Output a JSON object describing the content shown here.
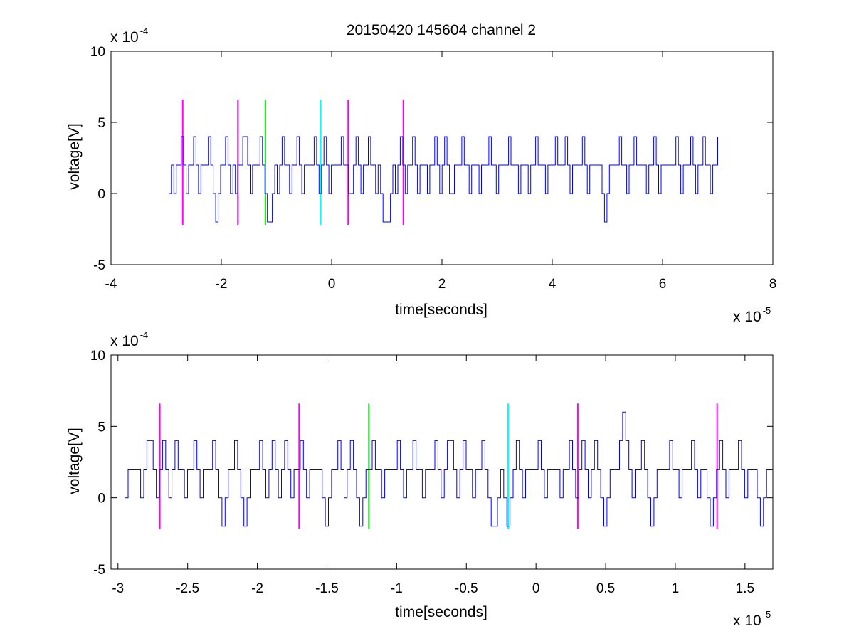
{
  "figure_title": "20150420 145604 channel 2",
  "chart_data": [
    {
      "type": "line",
      "title": "20150420 145604 channel 2",
      "xlabel": "time[seconds]",
      "ylabel": "voltage[V]",
      "x_multiplier_text": "x 10",
      "x_multiplier_exp": "-5",
      "y_multiplier_text": "x 10",
      "y_multiplier_exp": "-4",
      "xlim": [
        -4,
        8
      ],
      "ylim": [
        -5,
        10
      ],
      "xticks": [
        -4,
        -2,
        0,
        2,
        4,
        6,
        8
      ],
      "xtick_labels": [
        "-4",
        "-2",
        "0",
        "2",
        "4",
        "6",
        "8"
      ],
      "yticks": [
        -5,
        0,
        5,
        10
      ],
      "ytick_labels": [
        "-5",
        "0",
        "5",
        "10"
      ],
      "grid": false,
      "series": [
        {
          "color": "#0000ff",
          "x_start": -2.95,
          "x_end": 7.0,
          "levels": [
            0,
            2,
            0,
            2,
            2,
            4,
            2,
            0,
            2,
            2,
            4,
            2,
            0,
            2,
            2,
            2,
            4,
            2,
            0,
            -2,
            0,
            2,
            2,
            4,
            2,
            0,
            2,
            0,
            2,
            2,
            4,
            4,
            2,
            0,
            2,
            2,
            2,
            4,
            2,
            0,
            -2,
            -2,
            0,
            2,
            0,
            2,
            4,
            2,
            2,
            0,
            2,
            2,
            4,
            2,
            0,
            2,
            2,
            2,
            2,
            4,
            2,
            0,
            2,
            4,
            2,
            0,
            2,
            2,
            2,
            2,
            4,
            2,
            2,
            0,
            0,
            2,
            4,
            2,
            0,
            2,
            2,
            4,
            2,
            2,
            0,
            2,
            0,
            -2,
            -2,
            -2,
            0,
            2,
            0,
            2,
            4,
            2,
            0,
            2,
            2,
            4,
            2,
            0,
            2,
            2,
            2,
            0,
            2,
            2,
            4,
            2,
            0,
            2,
            4,
            2,
            0,
            0,
            2,
            2,
            2,
            4,
            2,
            2,
            0,
            2,
            2,
            2,
            0,
            2,
            2,
            2,
            4,
            2,
            2,
            0,
            2,
            2,
            2,
            2,
            4,
            2,
            2,
            2,
            0,
            2,
            2,
            2,
            0,
            2,
            2,
            4,
            2,
            2,
            2,
            0,
            2,
            2,
            2,
            4,
            2,
            2,
            2,
            4,
            2,
            0,
            2,
            2,
            2,
            2,
            4,
            2,
            0,
            2,
            2,
            2,
            2,
            2,
            0,
            -2,
            0,
            2,
            2,
            2,
            2,
            4,
            2,
            2,
            0,
            2,
            2,
            4,
            2,
            2,
            2,
            2,
            0,
            2,
            2,
            4,
            2,
            0,
            2,
            2,
            2,
            2,
            2,
            2,
            4,
            2,
            0,
            2,
            2,
            2,
            4,
            2,
            0,
            2,
            2,
            4,
            2,
            2,
            0,
            2,
            2,
            4
          ]
        }
      ],
      "markers": [
        {
          "x": -2.7,
          "color": "#ff00ff"
        },
        {
          "x": -1.7,
          "color": "#ff00ff"
        },
        {
          "x": -1.2,
          "color": "#00ff00"
        },
        {
          "x": -0.2,
          "color": "#00ffff"
        },
        {
          "x": 0.3,
          "color": "#ff00ff"
        },
        {
          "x": 1.3,
          "color": "#ff00ff"
        }
      ],
      "marker_range": [
        -2.2,
        6.6
      ]
    },
    {
      "type": "line",
      "xlabel": "time[seconds]",
      "ylabel": "voltage[V]",
      "x_multiplier_text": "x 10",
      "x_multiplier_exp": "-5",
      "y_multiplier_text": "x 10",
      "y_multiplier_exp": "-4",
      "xlim": [
        -3.05,
        1.7
      ],
      "ylim": [
        -5,
        10
      ],
      "xticks": [
        -3,
        -2.5,
        -2,
        -1.5,
        -1,
        -0.5,
        0,
        0.5,
        1,
        1.5
      ],
      "xtick_labels": [
        "-3",
        "-2.5",
        "-2",
        "-1.5",
        "-1",
        "-0.5",
        "0",
        "0.5",
        "1",
        "1.5"
      ],
      "yticks": [
        -5,
        0,
        5,
        10
      ],
      "ytick_labels": [
        "-5",
        "0",
        "5",
        "10"
      ],
      "grid": false,
      "series": [
        {
          "color": "#0000ff",
          "x_start": -2.95,
          "x_end": 1.7,
          "levels": [
            0,
            2,
            2,
            2,
            2,
            0,
            2,
            4,
            4,
            2,
            0,
            2,
            4,
            2,
            0,
            2,
            4,
            2,
            2,
            0,
            2,
            2,
            4,
            2,
            0,
            2,
            2,
            2,
            4,
            2,
            0,
            -2,
            0,
            2,
            2,
            4,
            2,
            0,
            -2,
            0,
            2,
            2,
            2,
            4,
            2,
            0,
            2,
            4,
            2,
            0,
            2,
            4,
            2,
            0,
            2,
            2,
            4,
            2,
            0,
            2,
            2,
            2,
            2,
            0,
            -2,
            0,
            2,
            2,
            4,
            2,
            0,
            2,
            4,
            2,
            0,
            -2,
            0,
            2,
            2,
            4,
            2,
            2,
            0,
            2,
            2,
            2,
            2,
            4,
            2,
            0,
            2,
            2,
            4,
            2,
            2,
            0,
            2,
            2,
            2,
            4,
            2,
            0,
            2,
            4,
            4,
            2,
            0,
            2,
            4,
            2,
            2,
            0,
            2,
            2,
            4,
            2,
            0,
            -2,
            -2,
            0,
            2,
            0,
            -2,
            0,
            2,
            4,
            2,
            0,
            2,
            2,
            2,
            2,
            4,
            2,
            0,
            2,
            2,
            2,
            2,
            0,
            2,
            2,
            4,
            2,
            0,
            2,
            4,
            2,
            0,
            2,
            4,
            2,
            0,
            -2,
            0,
            2,
            2,
            2,
            4,
            6,
            4,
            2,
            0,
            2,
            2,
            4,
            2,
            0,
            -2,
            0,
            2,
            2,
            2,
            2,
            4,
            2,
            2,
            0,
            2,
            2,
            2,
            4,
            2,
            0,
            2,
            2,
            0,
            -2,
            0,
            2,
            4,
            2,
            0,
            2,
            2,
            2,
            4,
            2,
            0,
            2,
            2,
            2,
            0,
            -2,
            0,
            2,
            2,
            2
          ]
        }
      ],
      "markers": [
        {
          "x": -2.7,
          "color": "#ff00ff"
        },
        {
          "x": -1.7,
          "color": "#ff00ff"
        },
        {
          "x": -1.2,
          "color": "#00ff00"
        },
        {
          "x": -0.2,
          "color": "#00ffff"
        },
        {
          "x": 0.3,
          "color": "#ff00ff"
        },
        {
          "x": 1.3,
          "color": "#ff00ff"
        }
      ],
      "marker_range": [
        -2.2,
        6.6
      ]
    }
  ]
}
